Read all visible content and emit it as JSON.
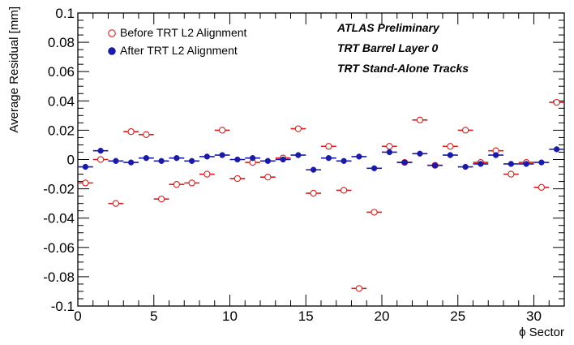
{
  "chart_data": {
    "type": "scatter",
    "title": "",
    "xlabel": "ϕ Sector",
    "ylabel": "Average Residual [mm]",
    "xlim": [
      0,
      32
    ],
    "ylim": [
      -0.1,
      0.1
    ],
    "x_major_ticks": [
      0,
      5,
      10,
      15,
      20,
      25,
      30
    ],
    "x_tick_labels": [
      "0",
      "5",
      "10",
      "15",
      "20",
      "25",
      "30"
    ],
    "y_major_ticks": [
      -0.1,
      -0.08,
      -0.06,
      -0.04,
      -0.02,
      0,
      0.02,
      0.04,
      0.06,
      0.08,
      0.1
    ],
    "y_tick_labels": [
      "-0.1",
      "-0.08",
      "-0.06",
      "-0.04",
      "-0.02",
      "0",
      "0.02",
      "0.04",
      "0.06",
      "0.08",
      "0.1"
    ],
    "grid": false,
    "legend_position": "top-left",
    "annotations": [
      "ATLAS Preliminary",
      "TRT Barrel Layer 0",
      "TRT Stand-Alone Tracks"
    ],
    "series": [
      {
        "name": "Before TRT L2 Alignment",
        "marker": "open-circle",
        "color": "#d42020",
        "x": [
          0.5,
          1.5,
          2.5,
          3.5,
          4.5,
          5.5,
          6.5,
          7.5,
          8.5,
          9.5,
          10.5,
          11.5,
          12.5,
          13.5,
          14.5,
          15.5,
          16.5,
          17.5,
          18.5,
          19.5,
          20.5,
          21.5,
          22.5,
          23.5,
          24.5,
          25.5,
          26.5,
          27.5,
          28.5,
          29.5,
          30.5,
          31.5
        ],
        "y": [
          -0.016,
          0.0,
          -0.03,
          0.019,
          0.017,
          -0.027,
          -0.017,
          -0.016,
          -0.01,
          0.02,
          -0.013,
          -0.002,
          -0.012,
          0.001,
          0.021,
          -0.023,
          0.009,
          -0.021,
          -0.088,
          -0.036,
          0.009,
          -0.002,
          0.027,
          -0.004,
          0.009,
          0.02,
          -0.002,
          0.006,
          -0.01,
          -0.002,
          -0.019,
          0.039
        ]
      },
      {
        "name": "After TRT L2 Alignment",
        "marker": "filled-circle",
        "color": "#1a1aa6",
        "x": [
          0.5,
          1.5,
          2.5,
          3.5,
          4.5,
          5.5,
          6.5,
          7.5,
          8.5,
          9.5,
          10.5,
          11.5,
          12.5,
          13.5,
          14.5,
          15.5,
          16.5,
          17.5,
          18.5,
          19.5,
          20.5,
          21.5,
          22.5,
          23.5,
          24.5,
          25.5,
          26.5,
          27.5,
          28.5,
          29.5,
          30.5,
          31.5
        ],
        "y": [
          -0.005,
          0.006,
          -0.001,
          -0.002,
          0.001,
          -0.001,
          0.001,
          -0.001,
          0.002,
          0.003,
          0.0,
          0.001,
          -0.001,
          0.0,
          0.003,
          -0.007,
          0.001,
          -0.001,
          0.002,
          -0.006,
          0.005,
          -0.002,
          0.004,
          -0.004,
          0.003,
          -0.005,
          -0.003,
          0.003,
          -0.003,
          -0.003,
          -0.002,
          0.007
        ]
      }
    ]
  }
}
